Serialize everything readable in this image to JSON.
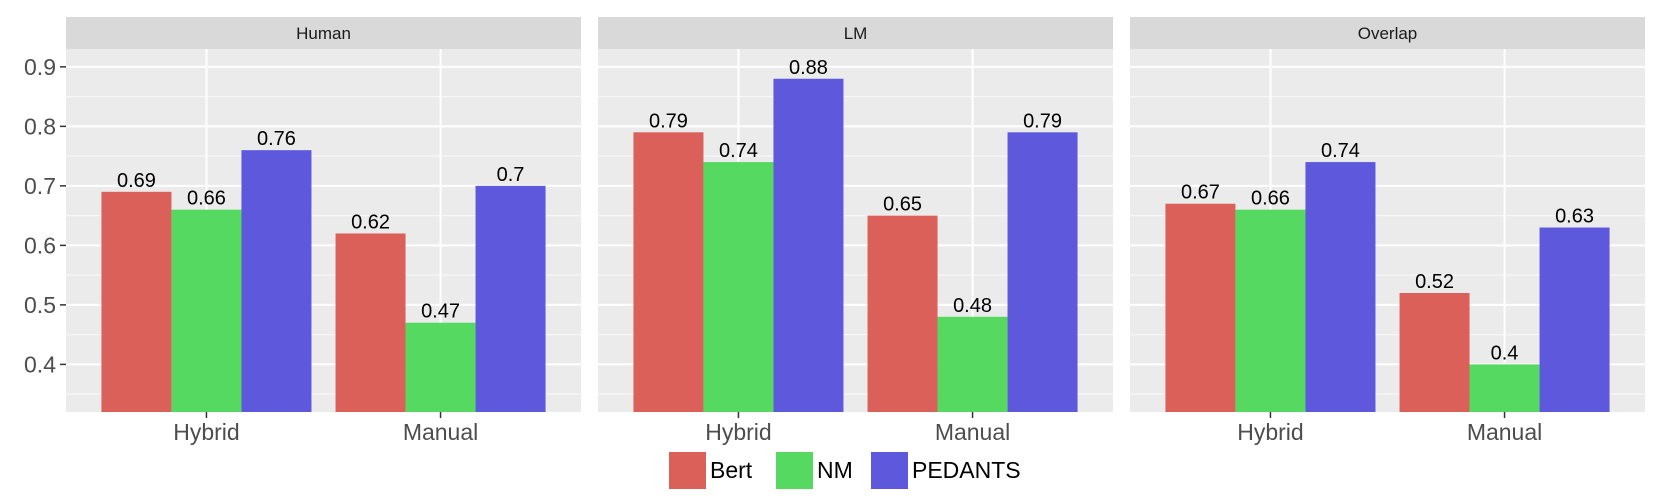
{
  "chart_data": {
    "type": "bar",
    "facets": [
      {
        "title": "Human",
        "categories": [
          "Hybrid",
          "Manual"
        ],
        "series": [
          {
            "name": "Bert",
            "values": [
              0.69,
              0.62
            ]
          },
          {
            "name": "NM",
            "values": [
              0.66,
              0.47
            ]
          },
          {
            "name": "PEDANTS",
            "values": [
              0.76,
              0.7
            ]
          }
        ],
        "labels": [
          [
            "0.69",
            "0.62"
          ],
          [
            "0.66",
            "0.47"
          ],
          [
            "0.76",
            "0.7"
          ]
        ]
      },
      {
        "title": "LM",
        "categories": [
          "Hybrid",
          "Manual"
        ],
        "series": [
          {
            "name": "Bert",
            "values": [
              0.79,
              0.65
            ]
          },
          {
            "name": "NM",
            "values": [
              0.74,
              0.48
            ]
          },
          {
            "name": "PEDANTS",
            "values": [
              0.88,
              0.79
            ]
          }
        ],
        "labels": [
          [
            "0.79",
            "0.65"
          ],
          [
            "0.74",
            "0.48"
          ],
          [
            "0.88",
            "0.79"
          ]
        ]
      },
      {
        "title": "Overlap",
        "categories": [
          "Hybrid",
          "Manual"
        ],
        "series": [
          {
            "name": "Bert",
            "values": [
              0.67,
              0.52
            ]
          },
          {
            "name": "NM",
            "values": [
              0.66,
              0.4
            ]
          },
          {
            "name": "PEDANTS",
            "values": [
              0.74,
              0.63
            ]
          }
        ],
        "labels": [
          [
            "0.67",
            "0.52"
          ],
          [
            "0.66",
            "0.4"
          ],
          [
            "0.74",
            "0.63"
          ]
        ]
      }
    ],
    "legend": [
      "Bert",
      "NM",
      "PEDANTS"
    ],
    "colors": {
      "Bert": "#dc605a",
      "NM": "#56d960",
      "PEDANTS": "#5e59dc"
    },
    "yticks": [
      "0.4",
      "0.5",
      "0.6",
      "0.7",
      "0.8",
      "0.9"
    ],
    "ylim": [
      0.32,
      0.93
    ],
    "grid": true,
    "legend_position": "bottom"
  }
}
